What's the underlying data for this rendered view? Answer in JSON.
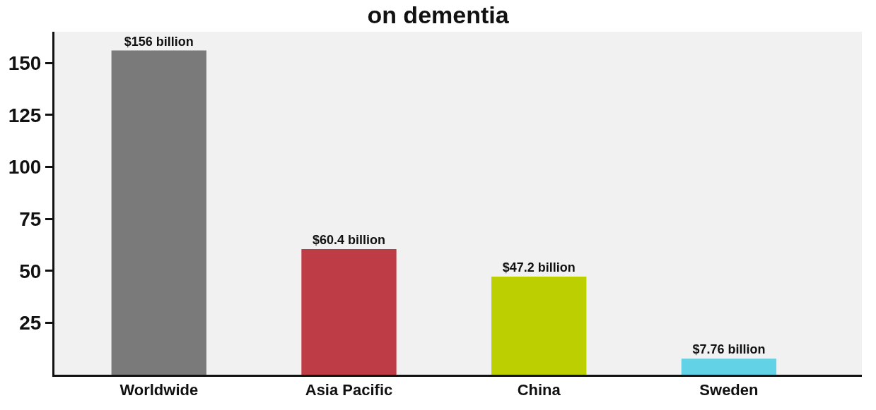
{
  "chart_data": {
    "type": "bar",
    "title": "on dementia",
    "categories": [
      "Worldwide",
      "Asia Pacific",
      "China",
      "Sweden"
    ],
    "values": [
      156,
      60.4,
      47.2,
      7.76
    ],
    "colors": [
      "#7a7a7a",
      "#be3c45",
      "#bccf00",
      "#62d3e6"
    ],
    "value_labels": [
      "$156 billion",
      "$60.4 billion",
      "$47.2 billion",
      "$7.76 billion"
    ],
    "ylim": [
      0,
      165
    ],
    "yticks": [
      25,
      50,
      75,
      100,
      125,
      150
    ],
    "grid": false
  }
}
